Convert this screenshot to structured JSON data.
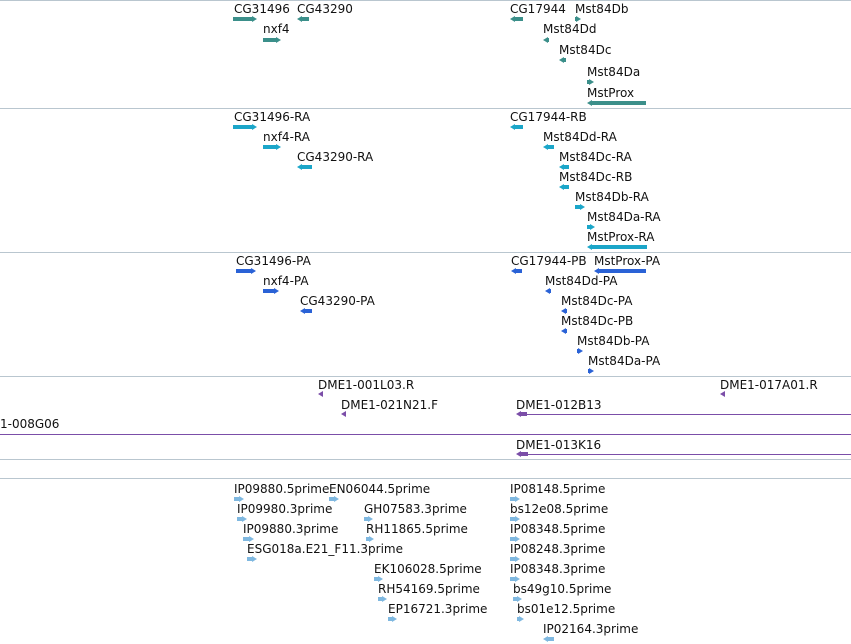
{
  "colors": {
    "gene": "#3b8f8a",
    "mrna": "#1ba6c9",
    "cds": "#2a62d6",
    "clone": "#7b4ea8",
    "est": "#7fb8e0",
    "separator": "#b9c6cf"
  },
  "tracks": {
    "genes": [
      {
        "label": "CG31496",
        "strand": "plus"
      },
      {
        "label": "CG43290",
        "strand": "minus"
      },
      {
        "label": "nxf4",
        "strand": "plus"
      },
      {
        "label": "CG17944",
        "strand": "minus"
      },
      {
        "label": "Mst84Db",
        "strand": "plus"
      },
      {
        "label": "Mst84Dd",
        "strand": "minus"
      },
      {
        "label": "Mst84Dc",
        "strand": "minus"
      },
      {
        "label": "Mst84Da",
        "strand": "plus"
      },
      {
        "label": "MstProx",
        "strand": "minus"
      }
    ],
    "transcripts": [
      {
        "label": "CG31496-RA",
        "strand": "plus"
      },
      {
        "label": "nxf4-RA",
        "strand": "plus"
      },
      {
        "label": "CG43290-RA",
        "strand": "minus"
      },
      {
        "label": "CG17944-RB",
        "strand": "minus"
      },
      {
        "label": "Mst84Dd-RA",
        "strand": "minus"
      },
      {
        "label": "Mst84Dc-RA",
        "strand": "minus"
      },
      {
        "label": "Mst84Dc-RB",
        "strand": "minus"
      },
      {
        "label": "Mst84Db-RA",
        "strand": "plus"
      },
      {
        "label": "Mst84Da-RA",
        "strand": "plus"
      },
      {
        "label": "MstProx-RA",
        "strand": "minus"
      }
    ],
    "proteins": [
      {
        "label": "CG31496-PA",
        "strand": "plus"
      },
      {
        "label": "nxf4-PA",
        "strand": "plus"
      },
      {
        "label": "CG43290-PA",
        "strand": "minus"
      },
      {
        "label": "CG17944-PB",
        "strand": "minus"
      },
      {
        "label": "MstProx-PA",
        "strand": "minus"
      },
      {
        "label": "Mst84Dd-PA",
        "strand": "minus"
      },
      {
        "label": "Mst84Dc-PA",
        "strand": "minus"
      },
      {
        "label": "Mst84Dc-PB",
        "strand": "minus"
      },
      {
        "label": "Mst84Db-PA",
        "strand": "plus"
      },
      {
        "label": "Mst84Da-PA",
        "strand": "plus"
      }
    ],
    "clones": [
      {
        "label": "DME1-001L03.R",
        "strand": "minus"
      },
      {
        "label": "DME1-017A01.R",
        "strand": "minus"
      },
      {
        "label": "DME1-021N21.F",
        "strand": "minus"
      },
      {
        "label": "DME1-012B13",
        "strand": "minus"
      },
      {
        "label": "1-008G06",
        "strand": "minus"
      }
    ],
    "clones2": [
      {
        "label": "DME1-013K16",
        "strand": "minus"
      }
    ],
    "ests": [
      {
        "label": "IP09880.5prime",
        "strand": "plus"
      },
      {
        "label": "EN06044.5prime",
        "strand": "plus"
      },
      {
        "label": "IP09980.3prime",
        "strand": "plus"
      },
      {
        "label": "GH07583.3prime",
        "strand": "plus"
      },
      {
        "label": "IP09880.3prime",
        "strand": "plus"
      },
      {
        "label": "RH11865.5prime",
        "strand": "plus"
      },
      {
        "label": "ESG018a.E21_F11.3prime",
        "strand": "plus"
      },
      {
        "label": "EK106028.5prime",
        "strand": "plus"
      },
      {
        "label": "RH54169.5prime",
        "strand": "plus"
      },
      {
        "label": "EP16721.3prime",
        "strand": "plus"
      },
      {
        "label": "IP08148.5prime",
        "strand": "plus"
      },
      {
        "label": "bs12e08.5prime",
        "strand": "plus"
      },
      {
        "label": "IP08348.5prime",
        "strand": "plus"
      },
      {
        "label": "IP08248.3prime",
        "strand": "plus"
      },
      {
        "label": "IP08348.3prime",
        "strand": "plus"
      },
      {
        "label": "bs49g10.5prime",
        "strand": "plus"
      },
      {
        "label": "bs01e12.5prime",
        "strand": "plus"
      },
      {
        "label": "IP02164.3prime",
        "strand": "minus"
      }
    ]
  }
}
